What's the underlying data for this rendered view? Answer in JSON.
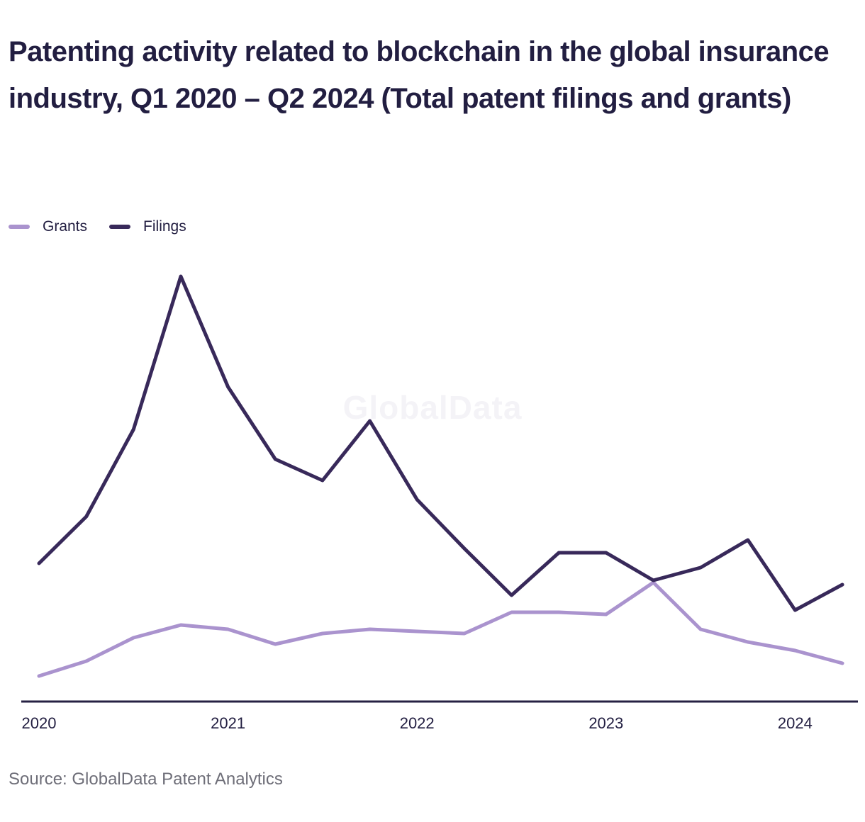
{
  "page": {
    "title": "Patenting activity related to blockchain in the global insurance industry, Q1 2020 – Q2 2024 (Total patent filings and grants)",
    "watermark": "GlobalData",
    "source": "Source: GlobalData Patent Analytics"
  },
  "colors": {
    "background": "#ffffff",
    "title_text": "#221e41",
    "axis_line": "#262143",
    "tick_text": "#221e41",
    "source_text": "#6e6e78",
    "watermark_text": "#f4f3f7",
    "grants": "#aa93ce",
    "filings": "#38295a"
  },
  "legend": {
    "items": [
      {
        "label": "Grants",
        "color": "#aa93ce"
      },
      {
        "label": "Filings",
        "color": "#38295a"
      }
    ]
  },
  "chart_data": {
    "type": "line",
    "title": "Patenting activity related to blockchain in the global insurance industry, Q1 2020 – Q2 2024 (Total patent filings and grants)",
    "x": [
      "Q1 2020",
      "Q2 2020",
      "Q3 2020",
      "Q4 2020",
      "Q1 2021",
      "Q2 2021",
      "Q3 2021",
      "Q4 2021",
      "Q1 2022",
      "Q2 2022",
      "Q3 2022",
      "Q4 2022",
      "Q1 2023",
      "Q2 2023",
      "Q3 2023",
      "Q4 2023",
      "Q1 2024",
      "Q2 2024"
    ],
    "x_tick_labels": [
      "2020",
      "2021",
      "2022",
      "2023",
      "2024"
    ],
    "series": [
      {
        "name": "Grants",
        "color": "#aa93ce",
        "values": [
          6,
          9.5,
          15,
          18,
          17,
          13.5,
          16,
          17,
          16.5,
          16,
          21,
          21,
          20.5,
          28,
          17,
          14,
          12,
          9
        ]
      },
      {
        "name": "Filings",
        "color": "#38295a",
        "values": [
          32.5,
          43.5,
          64,
          100,
          74,
          57,
          52,
          66,
          47.5,
          36,
          25,
          35,
          35,
          28.5,
          31.5,
          38,
          21.5,
          27.5
        ]
      }
    ],
    "ylim": [
      0,
      105
    ],
    "y_axis_visible": false,
    "grid": false,
    "legend_position": "top-left",
    "note": "No numeric y-axis is shown in the figure; series values are relative estimates scaled so the Q4 2020 filings peak = 100."
  }
}
